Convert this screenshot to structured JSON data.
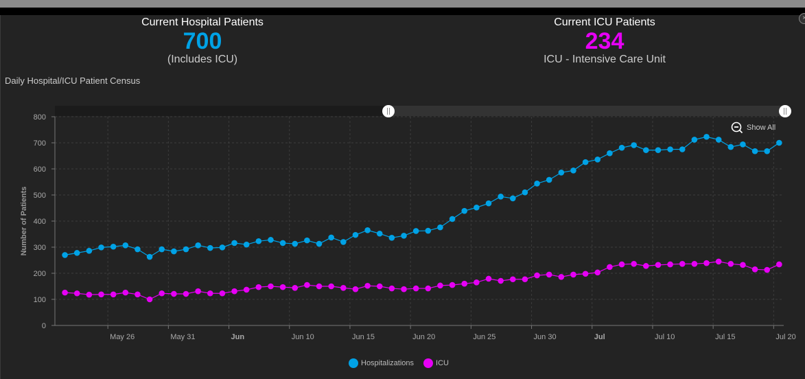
{
  "kpis": [
    {
      "title": "Current Hospital Patients",
      "value": "700",
      "subtitle": "(Includes ICU)",
      "color": "#00a2e6"
    },
    {
      "title": "Current ICU Patients",
      "value": "234",
      "subtitle": "ICU - Intensive Care Unit",
      "color": "#e600f5"
    }
  ],
  "show_all_label": "Show All",
  "chart_data": {
    "type": "line",
    "title": "Daily Hospital/ICU Patient Census",
    "xlabel": "",
    "ylabel": "Number of Patients",
    "ylim": [
      0,
      800
    ],
    "yticks": [
      0,
      100,
      200,
      300,
      400,
      500,
      600,
      700,
      800
    ],
    "grid": true,
    "legend_position": "bottom-center",
    "x_start": "May 22",
    "x_end": "Jul 20",
    "xticks": [
      {
        "label": "May 26",
        "day": 4,
        "bold": false
      },
      {
        "label": "May 31",
        "day": 9,
        "bold": false
      },
      {
        "label": "Jun",
        "day": 14,
        "bold": true
      },
      {
        "label": "Jun 10",
        "day": 19,
        "bold": false
      },
      {
        "label": "Jun 15",
        "day": 24,
        "bold": false
      },
      {
        "label": "Jun 20",
        "day": 29,
        "bold": false
      },
      {
        "label": "Jun 25",
        "day": 34,
        "bold": false
      },
      {
        "label": "Jun 30",
        "day": 39,
        "bold": false
      },
      {
        "label": "Jul",
        "day": 44,
        "bold": true
      },
      {
        "label": "Jul 10",
        "day": 49,
        "bold": false
      },
      {
        "label": "Jul 15",
        "day": 54,
        "bold": false
      },
      {
        "label": "Jul 20",
        "day": 59,
        "bold": false
      }
    ],
    "series": [
      {
        "name": "Hospitalizations",
        "color": "#00a2e6",
        "values": [
          270,
          278,
          286,
          299,
          302,
          307,
          292,
          263,
          292,
          284,
          292,
          307,
          297,
          299,
          316,
          310,
          323,
          328,
          316,
          313,
          326,
          313,
          337,
          320,
          347,
          365,
          352,
          336,
          344,
          362,
          363,
          376,
          408,
          439,
          452,
          468,
          494,
          487,
          510,
          544,
          558,
          586,
          594,
          626,
          636,
          660,
          681,
          691,
          672,
          672,
          675,
          675,
          712,
          723,
          712,
          684,
          694,
          668,
          668,
          700
        ]
      },
      {
        "name": "ICU",
        "color": "#e600f5",
        "values": [
          126,
          123,
          118,
          119,
          119,
          126,
          119,
          100,
          123,
          121,
          121,
          131,
          123,
          123,
          131,
          137,
          147,
          150,
          147,
          144,
          155,
          150,
          150,
          144,
          139,
          152,
          150,
          142,
          139,
          142,
          142,
          153,
          155,
          160,
          165,
          179,
          171,
          177,
          177,
          192,
          195,
          186,
          195,
          198,
          203,
          224,
          234,
          236,
          228,
          232,
          234,
          236,
          236,
          239,
          245,
          236,
          232,
          215,
          213,
          234
        ]
      }
    ]
  }
}
